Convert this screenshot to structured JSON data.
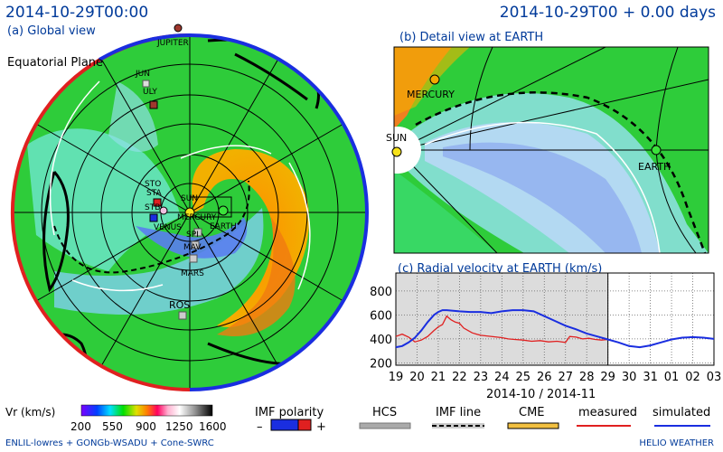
{
  "header": {
    "datetime": "2014-10-29T00:00",
    "relative": "2014-10-29T00 + 0.00 days",
    "global_view_label": "(a) Global view",
    "plane_label": "Equatorial Plane",
    "detail_label": "(b) Detail view at EARTH",
    "radial_label": "(c) Radial velocity at EARTH (km/s)"
  },
  "global_view": {
    "bodies": [
      "JUPITER",
      "JUN",
      "ULY",
      "STO",
      "STA",
      "STB",
      "SUN",
      "MERCURY",
      "VENUS",
      "EARTH",
      "SPI",
      "MAV",
      "MARS",
      "ROS"
    ]
  },
  "detail_view": {
    "bodies": [
      "MERCURY",
      "SUN",
      "EARTH"
    ]
  },
  "chart_data": {
    "type": "line",
    "title": "(c) Radial velocity at EARTH (km/s)",
    "xlabel": "2014-10 / 2014-11",
    "x_ticks": [
      "19",
      "20",
      "21",
      "22",
      "23",
      "24",
      "25",
      "26",
      "27",
      "28",
      "29",
      "30",
      "31",
      "01",
      "02",
      "03"
    ],
    "y_ticks": [
      200,
      400,
      600,
      800
    ],
    "ylim": [
      180,
      950
    ],
    "grid": true,
    "series": [
      {
        "name": "measured",
        "color": "#e02020",
        "x": [
          19.0,
          19.3,
          19.6,
          19.9,
          20.2,
          20.5,
          20.8,
          21.0,
          21.2,
          21.4,
          21.6,
          21.8,
          22.0,
          22.2,
          22.4,
          22.6,
          22.8,
          23.0,
          24.0,
          24.3,
          24.6,
          25.0,
          25.4,
          25.8,
          26.2,
          26.6,
          27.0,
          27.2,
          27.5,
          27.8,
          28.1,
          28.4,
          28.7,
          29.0
        ],
        "values": [
          420,
          440,
          415,
          375,
          390,
          420,
          470,
          500,
          520,
          590,
          560,
          540,
          530,
          490,
          470,
          450,
          440,
          430,
          410,
          400,
          395,
          390,
          380,
          385,
          375,
          380,
          370,
          420,
          415,
          400,
          405,
          395,
          390,
          395
        ]
      },
      {
        "name": "simulated",
        "color": "#1a2ee0",
        "x": [
          19.0,
          19.3,
          19.6,
          19.9,
          20.2,
          20.5,
          20.8,
          21.0,
          21.2,
          21.4,
          21.7,
          22.0,
          22.5,
          23.0,
          23.5,
          24.0,
          24.5,
          25.0,
          25.5,
          26.0,
          26.5,
          27.0,
          27.5,
          28.0,
          28.5,
          29.0,
          29.5,
          30.0,
          30.5,
          31.0,
          31.5,
          32.0,
          32.5,
          33.0,
          33.5,
          34.0
        ],
        "values": [
          330,
          340,
          370,
          410,
          470,
          540,
          600,
          625,
          640,
          640,
          635,
          630,
          625,
          625,
          615,
          630,
          640,
          640,
          630,
          590,
          550,
          510,
          480,
          445,
          420,
          395,
          370,
          340,
          330,
          345,
          370,
          395,
          410,
          415,
          410,
          400
        ]
      }
    ]
  },
  "legend": {
    "vr_label": "Vr (km/s)",
    "vr_ticks": [
      "200",
      "550",
      "900",
      "1250",
      "1600"
    ],
    "imf_polarity_label": "IMF polarity",
    "imf_minus": "–",
    "imf_plus": "+",
    "hcs_label": "HCS",
    "imf_line_label": "IMF line",
    "cme_label": "CME",
    "measured_label": "measured",
    "simulated_label": "simulated"
  },
  "footer": {
    "credit": "ENLIL-lowres + GONGb-WSADU + Cone-SWRC",
    "brand": "HELIO WEATHER"
  }
}
